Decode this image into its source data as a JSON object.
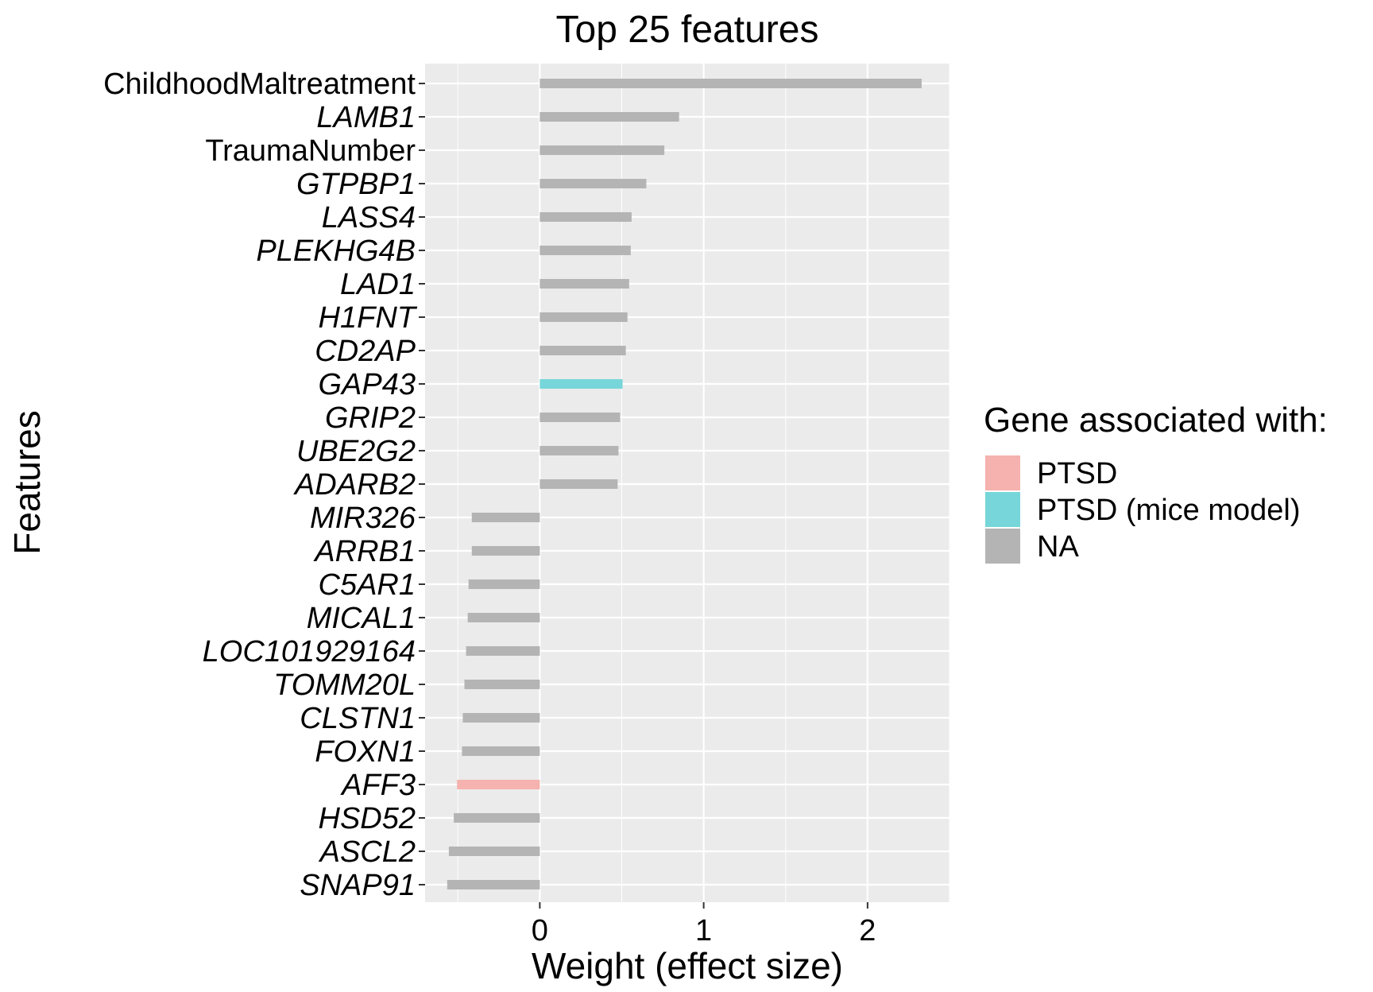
{
  "chart_data": {
    "type": "bar",
    "orientation": "horizontal",
    "title": "Top 25 features",
    "xlabel": "Weight (effect size)",
    "ylabel": "Features",
    "xlim": [
      -0.7,
      2.5
    ],
    "x_ticks": [
      0,
      1,
      2
    ],
    "x_tick_labels": [
      "0",
      "1",
      "2"
    ],
    "grid": true,
    "legend": {
      "title": "Gene associated with:",
      "position": "right",
      "entries": [
        {
          "key": "ptsd",
          "label": "PTSD",
          "color": "#f5b2ae"
        },
        {
          "key": "mice",
          "label": "PTSD (mice model)",
          "color": "#76d6d9"
        },
        {
          "key": "na",
          "label": "NA",
          "color": "#b4b4b4"
        }
      ]
    },
    "colors": {
      "panel": "#ebebeb",
      "grid": "#ffffff",
      "ptsd": "#f5b2ae",
      "mice": "#76d6d9",
      "na": "#b4b4b4"
    },
    "features": [
      {
        "label": "ChildhoodMaltreatment",
        "value": 2.33,
        "group": "na",
        "italic": false
      },
      {
        "label": "LAMB1",
        "value": 0.85,
        "group": "na",
        "italic": true
      },
      {
        "label": "TraumaNumber",
        "value": 0.76,
        "group": "na",
        "italic": false
      },
      {
        "label": "GTPBP1",
        "value": 0.65,
        "group": "na",
        "italic": true
      },
      {
        "label": "LASS4",
        "value": 0.56,
        "group": "na",
        "italic": true
      },
      {
        "label": "PLEKHG4B",
        "value": 0.555,
        "group": "na",
        "italic": true
      },
      {
        "label": "LAD1",
        "value": 0.545,
        "group": "na",
        "italic": true
      },
      {
        "label": "H1FNT",
        "value": 0.535,
        "group": "na",
        "italic": true
      },
      {
        "label": "CD2AP",
        "value": 0.525,
        "group": "na",
        "italic": true
      },
      {
        "label": "GAP43",
        "value": 0.505,
        "group": "mice",
        "italic": true
      },
      {
        "label": "GRIP2",
        "value": 0.49,
        "group": "na",
        "italic": true
      },
      {
        "label": "UBE2G2",
        "value": 0.48,
        "group": "na",
        "italic": true
      },
      {
        "label": "ADARB2",
        "value": 0.475,
        "group": "na",
        "italic": true
      },
      {
        "label": "MIR326",
        "value": -0.415,
        "group": "na",
        "italic": true
      },
      {
        "label": "ARRB1",
        "value": -0.415,
        "group": "na",
        "italic": true
      },
      {
        "label": "C5AR1",
        "value": -0.435,
        "group": "na",
        "italic": true
      },
      {
        "label": "MICAL1",
        "value": -0.44,
        "group": "na",
        "italic": true
      },
      {
        "label": "LOC101929164",
        "value": -0.45,
        "group": "na",
        "italic": true
      },
      {
        "label": "TOMM20L",
        "value": -0.46,
        "group": "na",
        "italic": true
      },
      {
        "label": "CLSTN1",
        "value": -0.47,
        "group": "na",
        "italic": true
      },
      {
        "label": "FOXN1",
        "value": -0.475,
        "group": "na",
        "italic": true
      },
      {
        "label": "AFF3",
        "value": -0.505,
        "group": "ptsd",
        "italic": true
      },
      {
        "label": "HSD52",
        "value": -0.525,
        "group": "na",
        "italic": true
      },
      {
        "label": "ASCL2",
        "value": -0.555,
        "group": "na",
        "italic": true
      },
      {
        "label": "SNAP91",
        "value": -0.565,
        "group": "na",
        "italic": true
      }
    ]
  }
}
